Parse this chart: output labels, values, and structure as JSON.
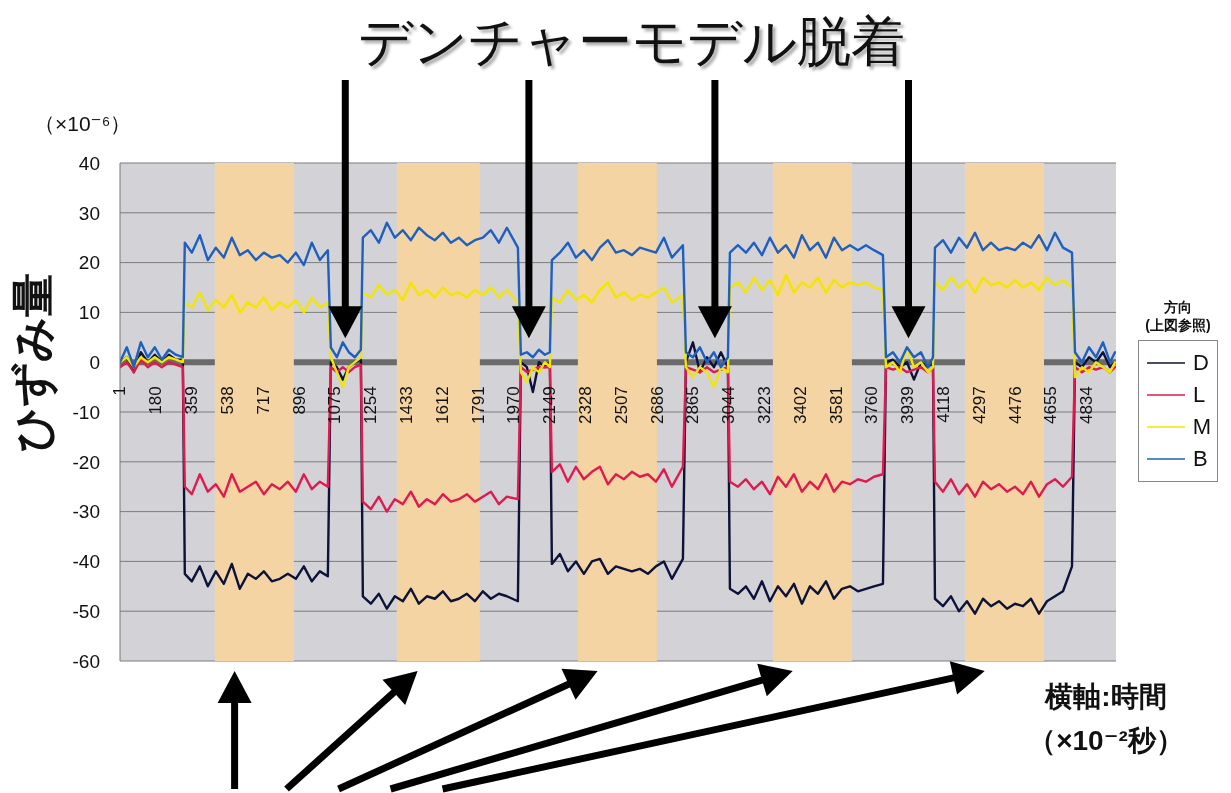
{
  "chart_data": {
    "type": "line",
    "title": "デンチャーモデル脱着",
    "xlabel": "横軸:時間（×10⁻²秒）",
    "ylabel": "ひずみ量",
    "legend_title": "方向\n(上図参照)",
    "annotations": [
      "（×10⁻⁶）"
    ],
    "x": [
      1,
      35,
      70,
      105,
      140,
      175,
      210,
      245,
      280,
      315,
      325,
      360,
      400,
      440,
      480,
      520,
      560,
      600,
      640,
      680,
      720,
      760,
      800,
      840,
      880,
      920,
      960,
      1000,
      1040,
      1055,
      1085,
      1115,
      1145,
      1175,
      1205,
      1215,
      1255,
      1295,
      1335,
      1375,
      1415,
      1455,
      1495,
      1535,
      1575,
      1615,
      1655,
      1695,
      1735,
      1775,
      1815,
      1855,
      1895,
      1935,
      1990,
      2005,
      2035,
      2065,
      2095,
      2125,
      2150,
      2160,
      2200,
      2240,
      2280,
      2320,
      2360,
      2400,
      2440,
      2480,
      2520,
      2560,
      2600,
      2640,
      2680,
      2720,
      2760,
      2815,
      2830,
      2865,
      2900,
      2935,
      2970,
      3005,
      3040,
      3050,
      3090,
      3130,
      3170,
      3210,
      3250,
      3290,
      3330,
      3370,
      3410,
      3450,
      3490,
      3530,
      3570,
      3610,
      3650,
      3690,
      3730,
      3770,
      3815,
      3830,
      3865,
      3900,
      3935,
      3970,
      4005,
      4040,
      4065,
      4075,
      4115,
      4155,
      4195,
      4235,
      4275,
      4315,
      4355,
      4395,
      4435,
      4475,
      4515,
      4555,
      4595,
      4635,
      4675,
      4715,
      4760,
      4775,
      4810,
      4845,
      4880,
      4915,
      4950,
      4975
    ],
    "series": [
      {
        "name": "D",
        "color": "#0d1238",
        "values": [
          0,
          1,
          -2,
          2,
          0,
          1.5,
          0,
          1.5,
          0.5,
          0.5,
          -42.5,
          -44,
          -41,
          -45,
          -42,
          -44.5,
          -40.5,
          -45.5,
          -42.5,
          -43.5,
          -42,
          -44,
          -43.5,
          -42.5,
          -43.5,
          -41,
          -44,
          -42,
          -43,
          0,
          -1,
          -3.5,
          -1,
          0,
          0.5,
          -47,
          -48.5,
          -46.5,
          -49.5,
          -47,
          -48,
          -45.5,
          -48.5,
          -47,
          -47.5,
          -46,
          -48,
          -47.5,
          -46.5,
          -48,
          -46,
          -47.5,
          -46.5,
          -47,
          -48,
          0,
          -1,
          -6,
          0,
          -1,
          0,
          -40.5,
          -38.5,
          -42,
          -40,
          -42.5,
          -40,
          -39.5,
          -42.5,
          -41,
          -41.5,
          -42,
          -41.5,
          -42.5,
          -41,
          -40,
          -43.5,
          -39.5,
          0,
          4,
          -2,
          1,
          -1,
          2,
          -1,
          -45.5,
          -46.5,
          -45,
          -47.5,
          -44,
          -48,
          -45,
          -47,
          -44.5,
          -48.5,
          -45,
          -46.5,
          -44,
          -47.5,
          -45.5,
          -45,
          -46,
          -45.5,
          -45,
          -44.5,
          0,
          0.5,
          -1,
          0,
          -3.5,
          0,
          -1,
          0,
          -47.5,
          -49,
          -47,
          -50,
          -48,
          -50.5,
          -47.5,
          -49,
          -48,
          -49.5,
          -48.5,
          -49,
          -47.5,
          -50.5,
          -48,
          -47,
          -46,
          -41,
          0,
          -1,
          1,
          0,
          2,
          -1,
          0
        ]
      },
      {
        "name": "L",
        "color": "#e01a4f",
        "values": [
          -1,
          0,
          -2,
          0.5,
          -1,
          0,
          -1,
          0,
          -0.5,
          -1,
          -25,
          -26.5,
          -22.5,
          -26,
          -24.5,
          -27,
          -22.5,
          -26,
          -25,
          -24,
          -26.5,
          -24.5,
          -25.5,
          -24,
          -26,
          -22.5,
          -25.5,
          -24,
          -25,
          -1,
          -2,
          -1,
          -2,
          -1,
          -0.5,
          -28,
          -29.5,
          -27,
          -30,
          -27.5,
          -28.5,
          -26,
          -29,
          -27.5,
          -28.5,
          -26.5,
          -28,
          -27.5,
          -26.5,
          -28,
          -27,
          -26,
          -28.5,
          -27,
          -27.5,
          -1,
          -2,
          -1.5,
          -1,
          -1,
          -1,
          -22,
          -20.5,
          -24,
          -21,
          -23.5,
          -22,
          -21,
          -24.5,
          -22.5,
          -23.5,
          -22,
          -23,
          -22.5,
          -24,
          -21.5,
          -25,
          -21,
          -1,
          -1.5,
          -2,
          -1,
          -2,
          -1.5,
          -1,
          -24,
          -25,
          -23.5,
          -25.5,
          -24,
          -26.5,
          -23,
          -25,
          -22.5,
          -26,
          -24,
          -25.5,
          -22.5,
          -26,
          -24,
          -24.5,
          -23.5,
          -24,
          -23,
          -22.5,
          -1,
          -1.5,
          -1,
          -2,
          -1.5,
          -1,
          -2,
          -1,
          -24,
          -26,
          -23.5,
          -26.5,
          -24.5,
          -27,
          -24,
          -25.5,
          -24.5,
          -26,
          -25,
          -26.5,
          -24,
          -27,
          -24.5,
          -23.5,
          -25,
          -23,
          -1,
          -2,
          -1,
          -1.5,
          -1,
          -2,
          -1
        ]
      },
      {
        "name": "M",
        "color": "#f2e600",
        "values": [
          0,
          1,
          -1,
          1,
          0,
          1,
          0,
          1,
          0.5,
          0,
          12,
          11,
          14,
          10.5,
          12.5,
          11,
          13.5,
          10,
          12,
          11,
          13,
          10.5,
          12,
          11,
          12.5,
          10,
          13,
          11,
          12,
          1,
          -2,
          -5,
          -1,
          0,
          1,
          14,
          13,
          15.5,
          13.5,
          14.5,
          12.5,
          16,
          13.5,
          14.5,
          13,
          15,
          13.5,
          14,
          13,
          14.5,
          13.5,
          15,
          13,
          14.5,
          12,
          -2,
          -4,
          -1,
          -2,
          0,
          -1,
          13,
          12,
          14.5,
          12.5,
          13.5,
          12,
          14.5,
          16,
          13,
          14,
          12.5,
          13.5,
          13,
          14,
          15,
          12,
          13.5,
          -1,
          -3,
          -1,
          -2,
          -5,
          -1,
          -2,
          15,
          16,
          14,
          17,
          14.5,
          16.5,
          13.5,
          17.5,
          14,
          16,
          15,
          17,
          14,
          16.5,
          15,
          16,
          15.5,
          16,
          15,
          14.5,
          -1,
          0,
          -2,
          3,
          -1,
          0,
          -2,
          -1,
          16,
          14.5,
          17,
          15,
          16.5,
          14,
          17,
          15.5,
          16,
          15,
          16.5,
          15,
          16,
          14.5,
          17,
          15.5,
          16.5,
          15,
          -3,
          -1,
          -2,
          0,
          -1,
          -2,
          0
        ]
      },
      {
        "name": "B",
        "color": "#1f5fc0",
        "values": [
          0,
          3,
          -1,
          4,
          1,
          3,
          0.5,
          2.5,
          1.5,
          1,
          24,
          22,
          25.5,
          20.5,
          23,
          21,
          25,
          21.5,
          22.5,
          20.5,
          22,
          21,
          21.5,
          20,
          22,
          19.5,
          24,
          20.5,
          22.5,
          3,
          1,
          4,
          2,
          1,
          2.5,
          25,
          26.5,
          24,
          28,
          25,
          26.5,
          24.5,
          27,
          25.5,
          24.5,
          26,
          24,
          25,
          23.5,
          24.5,
          25,
          26.5,
          24,
          27,
          23,
          1.5,
          2,
          1,
          2.5,
          1.5,
          2,
          20.5,
          22,
          24,
          21,
          22.5,
          20.5,
          23,
          24.5,
          22,
          22.5,
          21.5,
          23,
          22.5,
          22,
          25,
          21,
          23.5,
          2,
          1,
          3,
          0,
          2,
          -1,
          1,
          22,
          23.5,
          22,
          24,
          21.5,
          25,
          22,
          23.5,
          21,
          25.5,
          22.5,
          24,
          21,
          25,
          22.5,
          23.5,
          22.5,
          23.5,
          22.5,
          21.5,
          1,
          2,
          0,
          3,
          1,
          2,
          -1,
          1,
          23,
          24.5,
          22,
          25,
          23,
          26,
          22.5,
          24,
          22.5,
          23,
          22.5,
          24,
          23,
          25.5,
          22.5,
          26,
          23,
          22,
          2,
          0,
          3,
          1,
          4,
          0,
          2
        ]
      }
    ],
    "xlim": [
      1,
      4980
    ],
    "xticks": [
      1,
      180,
      359,
      538,
      717,
      896,
      1075,
      1254,
      1433,
      1612,
      1791,
      1970,
      2149,
      2328,
      2507,
      2686,
      2865,
      3044,
      3223,
      3402,
      3581,
      3760,
      3939,
      4118,
      4297,
      4476,
      4655,
      4834
    ],
    "ylim": [
      -60,
      40
    ],
    "yticks": [
      -60,
      -50,
      -40,
      -30,
      -20,
      -10,
      0,
      10,
      20,
      30,
      40
    ],
    "bands": [
      {
        "axis": "x",
        "from": 475,
        "to": 870,
        "color": "#f3d4a2"
      },
      {
        "axis": "x",
        "from": 1385,
        "to": 1800,
        "color": "#f3d4a2"
      },
      {
        "axis": "x",
        "from": 2290,
        "to": 2685,
        "color": "#f3d4a2"
      },
      {
        "axis": "x",
        "from": 3265,
        "to": 3660,
        "color": "#f3d4a2"
      },
      {
        "axis": "x",
        "from": 4225,
        "to": 4620,
        "color": "#f3d4a2"
      }
    ],
    "grid": "y",
    "legend": "right",
    "marker": "none"
  }
}
